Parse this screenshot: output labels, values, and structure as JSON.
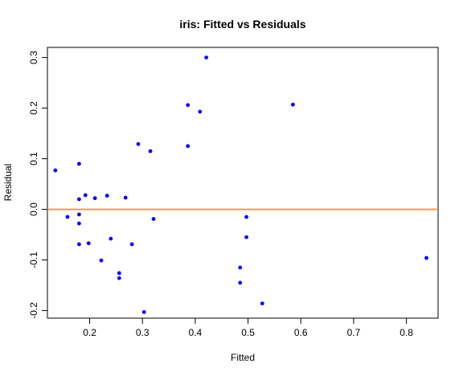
{
  "chart_data": {
    "type": "scatter",
    "title": "iris: Fitted vs Residuals",
    "xlabel": "Fitted",
    "ylabel": "Residual",
    "xlim": [
      0.12,
      0.86
    ],
    "ylim": [
      -0.215,
      0.32
    ],
    "xticks": [
      0.2,
      0.3,
      0.4,
      0.5,
      0.6,
      0.7,
      0.8
    ],
    "xtick_labels": [
      "0.2",
      "0.3",
      "0.4",
      "0.5",
      "0.6",
      "0.7",
      "0.8"
    ],
    "yticks": [
      -0.2,
      -0.1,
      0.0,
      0.1,
      0.2,
      0.3
    ],
    "ytick_labels": [
      "-0.2",
      "-0.1",
      "0.0",
      "0.1",
      "0.2",
      "0.3"
    ],
    "grid": false,
    "reference_line": {
      "y": 0,
      "color": "#f39c3a"
    },
    "point_color": "#0000ff",
    "points": [
      {
        "x": 0.135,
        "y": 0.077
      },
      {
        "x": 0.158,
        "y": -0.015
      },
      {
        "x": 0.18,
        "y": 0.09
      },
      {
        "x": 0.18,
        "y": 0.02
      },
      {
        "x": 0.18,
        "y": -0.01
      },
      {
        "x": 0.18,
        "y": -0.028
      },
      {
        "x": 0.18,
        "y": -0.069
      },
      {
        "x": 0.192,
        "y": 0.028
      },
      {
        "x": 0.198,
        "y": -0.067
      },
      {
        "x": 0.21,
        "y": 0.022
      },
      {
        "x": 0.222,
        "y": -0.101
      },
      {
        "x": 0.233,
        "y": 0.027
      },
      {
        "x": 0.24,
        "y": -0.058
      },
      {
        "x": 0.256,
        "y": -0.126
      },
      {
        "x": 0.256,
        "y": -0.136
      },
      {
        "x": 0.268,
        "y": 0.023
      },
      {
        "x": 0.28,
        "y": -0.069
      },
      {
        "x": 0.292,
        "y": 0.129
      },
      {
        "x": 0.303,
        "y": -0.203
      },
      {
        "x": 0.315,
        "y": 0.115
      },
      {
        "x": 0.321,
        "y": -0.019
      },
      {
        "x": 0.386,
        "y": 0.206
      },
      {
        "x": 0.386,
        "y": 0.125
      },
      {
        "x": 0.409,
        "y": 0.193
      },
      {
        "x": 0.421,
        "y": 0.3
      },
      {
        "x": 0.485,
        "y": -0.115
      },
      {
        "x": 0.485,
        "y": -0.145
      },
      {
        "x": 0.497,
        "y": -0.015
      },
      {
        "x": 0.497,
        "y": -0.055
      },
      {
        "x": 0.527,
        "y": -0.186
      },
      {
        "x": 0.585,
        "y": 0.207
      },
      {
        "x": 0.838,
        "y": -0.096
      }
    ]
  }
}
